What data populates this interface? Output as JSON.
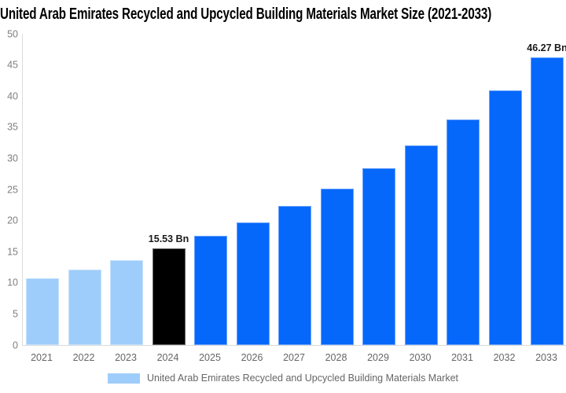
{
  "title": "United Arab Emirates Recycled and Upcycled Building Materials Market Size (2021-2033)",
  "chart_data": {
    "type": "bar",
    "title": "United Arab Emirates Recycled and Upcycled Building Materials Market Size (2021-2033)",
    "xlabel": "",
    "ylabel": "",
    "unit": "Bn",
    "categories": [
      "2021",
      "2022",
      "2023",
      "2024",
      "2025",
      "2026",
      "2027",
      "2028",
      "2029",
      "2030",
      "2031",
      "2032",
      "2033"
    ],
    "values": [
      10.7,
      12.1,
      13.6,
      15.53,
      17.5,
      19.7,
      22.3,
      25.1,
      28.4,
      32.1,
      36.2,
      40.9,
      46.27
    ],
    "ylim": [
      0,
      50
    ],
    "yticks": [
      0,
      5,
      10,
      15,
      20,
      25,
      30,
      35,
      40,
      45,
      50
    ],
    "grid": false,
    "legend_position": "bottom",
    "bar_colors": [
      "#9FCDFB",
      "#9FCDFB",
      "#9FCDFB",
      "#000000",
      "#0667FB",
      "#0667FB",
      "#0667FB",
      "#0667FB",
      "#0667FB",
      "#0667FB",
      "#0667FB",
      "#0667FB",
      "#0667FB"
    ],
    "annotations": [
      {
        "index": 3,
        "text": "15.53 Bn"
      },
      {
        "index": 12,
        "text": "46.27 Bn"
      }
    ]
  },
  "legend": {
    "label": "United Arab Emirates Recycled and Upcycled Building Materials Market",
    "swatch_color": "#9FCDFB"
  },
  "theme": {
    "background": "#FFFFFF",
    "title_color": "#000000",
    "axis_line": "#DCDCDC",
    "tick_color": "#7F7F7F",
    "xlabel_color": "#666666",
    "annotation_color": "#1A1A1A"
  }
}
